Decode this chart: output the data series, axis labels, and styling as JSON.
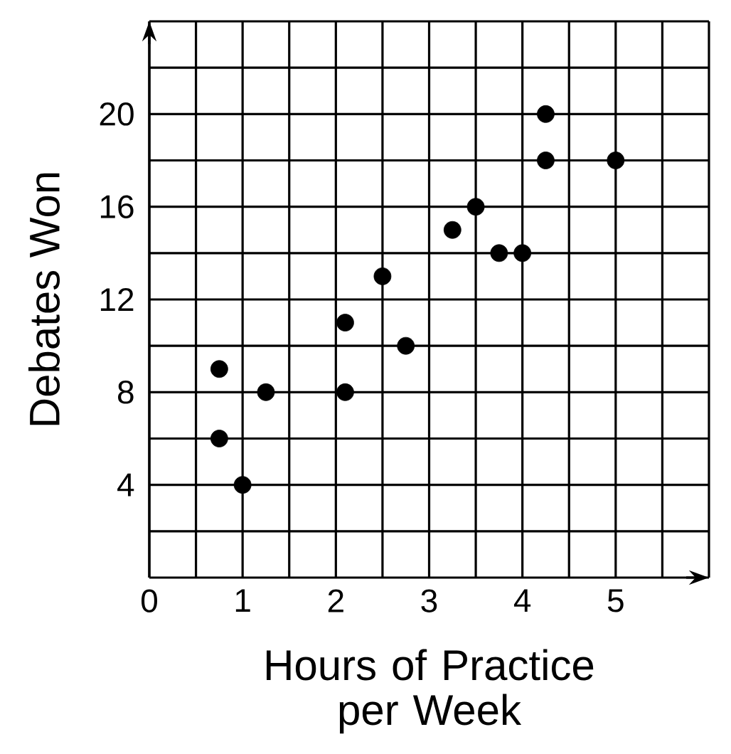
{
  "chart_data": {
    "type": "scatter",
    "xlabel": "Hours of Practice per Week",
    "ylabel": "Debates Won",
    "x": [
      0.75,
      0.75,
      1,
      1.25,
      2.1,
      2.1,
      2.5,
      2.75,
      3.25,
      3.5,
      3.75,
      4,
      4.25,
      4.25,
      5
    ],
    "values": [
      9,
      6,
      4,
      8,
      11,
      8,
      13,
      10,
      15,
      16,
      14,
      14,
      20,
      18,
      18
    ],
    "color": "#000000",
    "marker": "circle",
    "grid": true,
    "xlim": [
      0,
      6
    ],
    "ylim": [
      0,
      24
    ],
    "xticks": [
      0,
      {
        "value": 0.5,
        "label": null
      },
      1,
      {
        "value": 1.5,
        "label": null
      },
      2,
      {
        "value": 2.5,
        "label": null
      },
      3,
      {
        "value": 3.5,
        "label": null
      },
      4,
      {
        "value": 4.5,
        "label": null
      },
      5,
      {
        "value": 5.5,
        "label": null
      },
      {
        "value": 6,
        "label": null
      }
    ],
    "yticks": [
      {
        "value": 2,
        "label": null
      },
      4,
      {
        "value": 6,
        "label": null
      },
      8,
      {
        "value": 10,
        "label": null
      },
      12,
      {
        "value": 14,
        "label": null
      },
      16,
      {
        "value": 18,
        "label": null
      },
      20,
      {
        "value": 22,
        "label": null
      },
      {
        "value": 24,
        "label": null
      }
    ]
  }
}
